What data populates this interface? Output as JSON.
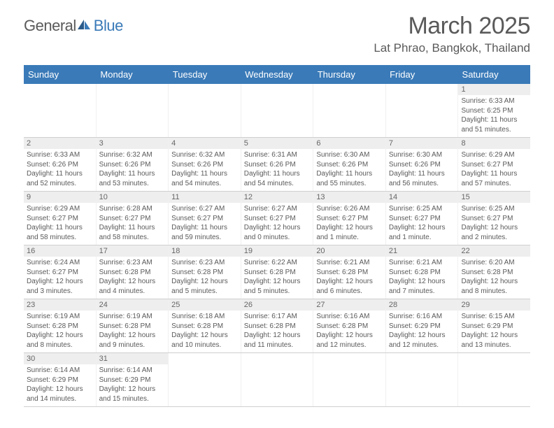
{
  "logo": {
    "text1": "General",
    "text2": "Blue",
    "color1": "#5a5a5a",
    "color2": "#3a7ab8"
  },
  "title": "March 2025",
  "location": "Lat Phrao, Bangkok, Thailand",
  "header_bg": "#3a7ab8",
  "day_names": [
    "Sunday",
    "Monday",
    "Tuesday",
    "Wednesday",
    "Thursday",
    "Friday",
    "Saturday"
  ],
  "weeks": [
    [
      null,
      null,
      null,
      null,
      null,
      null,
      {
        "n": "1",
        "sr": "Sunrise: 6:33 AM",
        "ss": "Sunset: 6:25 PM",
        "dl": "Daylight: 11 hours and 51 minutes."
      }
    ],
    [
      {
        "n": "2",
        "sr": "Sunrise: 6:33 AM",
        "ss": "Sunset: 6:26 PM",
        "dl": "Daylight: 11 hours and 52 minutes."
      },
      {
        "n": "3",
        "sr": "Sunrise: 6:32 AM",
        "ss": "Sunset: 6:26 PM",
        "dl": "Daylight: 11 hours and 53 minutes."
      },
      {
        "n": "4",
        "sr": "Sunrise: 6:32 AM",
        "ss": "Sunset: 6:26 PM",
        "dl": "Daylight: 11 hours and 54 minutes."
      },
      {
        "n": "5",
        "sr": "Sunrise: 6:31 AM",
        "ss": "Sunset: 6:26 PM",
        "dl": "Daylight: 11 hours and 54 minutes."
      },
      {
        "n": "6",
        "sr": "Sunrise: 6:30 AM",
        "ss": "Sunset: 6:26 PM",
        "dl": "Daylight: 11 hours and 55 minutes."
      },
      {
        "n": "7",
        "sr": "Sunrise: 6:30 AM",
        "ss": "Sunset: 6:26 PM",
        "dl": "Daylight: 11 hours and 56 minutes."
      },
      {
        "n": "8",
        "sr": "Sunrise: 6:29 AM",
        "ss": "Sunset: 6:27 PM",
        "dl": "Daylight: 11 hours and 57 minutes."
      }
    ],
    [
      {
        "n": "9",
        "sr": "Sunrise: 6:29 AM",
        "ss": "Sunset: 6:27 PM",
        "dl": "Daylight: 11 hours and 58 minutes."
      },
      {
        "n": "10",
        "sr": "Sunrise: 6:28 AM",
        "ss": "Sunset: 6:27 PM",
        "dl": "Daylight: 11 hours and 58 minutes."
      },
      {
        "n": "11",
        "sr": "Sunrise: 6:27 AM",
        "ss": "Sunset: 6:27 PM",
        "dl": "Daylight: 11 hours and 59 minutes."
      },
      {
        "n": "12",
        "sr": "Sunrise: 6:27 AM",
        "ss": "Sunset: 6:27 PM",
        "dl": "Daylight: 12 hours and 0 minutes."
      },
      {
        "n": "13",
        "sr": "Sunrise: 6:26 AM",
        "ss": "Sunset: 6:27 PM",
        "dl": "Daylight: 12 hours and 1 minute."
      },
      {
        "n": "14",
        "sr": "Sunrise: 6:25 AM",
        "ss": "Sunset: 6:27 PM",
        "dl": "Daylight: 12 hours and 1 minute."
      },
      {
        "n": "15",
        "sr": "Sunrise: 6:25 AM",
        "ss": "Sunset: 6:27 PM",
        "dl": "Daylight: 12 hours and 2 minutes."
      }
    ],
    [
      {
        "n": "16",
        "sr": "Sunrise: 6:24 AM",
        "ss": "Sunset: 6:27 PM",
        "dl": "Daylight: 12 hours and 3 minutes."
      },
      {
        "n": "17",
        "sr": "Sunrise: 6:23 AM",
        "ss": "Sunset: 6:28 PM",
        "dl": "Daylight: 12 hours and 4 minutes."
      },
      {
        "n": "18",
        "sr": "Sunrise: 6:23 AM",
        "ss": "Sunset: 6:28 PM",
        "dl": "Daylight: 12 hours and 5 minutes."
      },
      {
        "n": "19",
        "sr": "Sunrise: 6:22 AM",
        "ss": "Sunset: 6:28 PM",
        "dl": "Daylight: 12 hours and 5 minutes."
      },
      {
        "n": "20",
        "sr": "Sunrise: 6:21 AM",
        "ss": "Sunset: 6:28 PM",
        "dl": "Daylight: 12 hours and 6 minutes."
      },
      {
        "n": "21",
        "sr": "Sunrise: 6:21 AM",
        "ss": "Sunset: 6:28 PM",
        "dl": "Daylight: 12 hours and 7 minutes."
      },
      {
        "n": "22",
        "sr": "Sunrise: 6:20 AM",
        "ss": "Sunset: 6:28 PM",
        "dl": "Daylight: 12 hours and 8 minutes."
      }
    ],
    [
      {
        "n": "23",
        "sr": "Sunrise: 6:19 AM",
        "ss": "Sunset: 6:28 PM",
        "dl": "Daylight: 12 hours and 8 minutes."
      },
      {
        "n": "24",
        "sr": "Sunrise: 6:19 AM",
        "ss": "Sunset: 6:28 PM",
        "dl": "Daylight: 12 hours and 9 minutes."
      },
      {
        "n": "25",
        "sr": "Sunrise: 6:18 AM",
        "ss": "Sunset: 6:28 PM",
        "dl": "Daylight: 12 hours and 10 minutes."
      },
      {
        "n": "26",
        "sr": "Sunrise: 6:17 AM",
        "ss": "Sunset: 6:28 PM",
        "dl": "Daylight: 12 hours and 11 minutes."
      },
      {
        "n": "27",
        "sr": "Sunrise: 6:16 AM",
        "ss": "Sunset: 6:28 PM",
        "dl": "Daylight: 12 hours and 12 minutes."
      },
      {
        "n": "28",
        "sr": "Sunrise: 6:16 AM",
        "ss": "Sunset: 6:29 PM",
        "dl": "Daylight: 12 hours and 12 minutes."
      },
      {
        "n": "29",
        "sr": "Sunrise: 6:15 AM",
        "ss": "Sunset: 6:29 PM",
        "dl": "Daylight: 12 hours and 13 minutes."
      }
    ],
    [
      {
        "n": "30",
        "sr": "Sunrise: 6:14 AM",
        "ss": "Sunset: 6:29 PM",
        "dl": "Daylight: 12 hours and 14 minutes."
      },
      {
        "n": "31",
        "sr": "Sunrise: 6:14 AM",
        "ss": "Sunset: 6:29 PM",
        "dl": "Daylight: 12 hours and 15 minutes."
      },
      null,
      null,
      null,
      null,
      null
    ]
  ]
}
